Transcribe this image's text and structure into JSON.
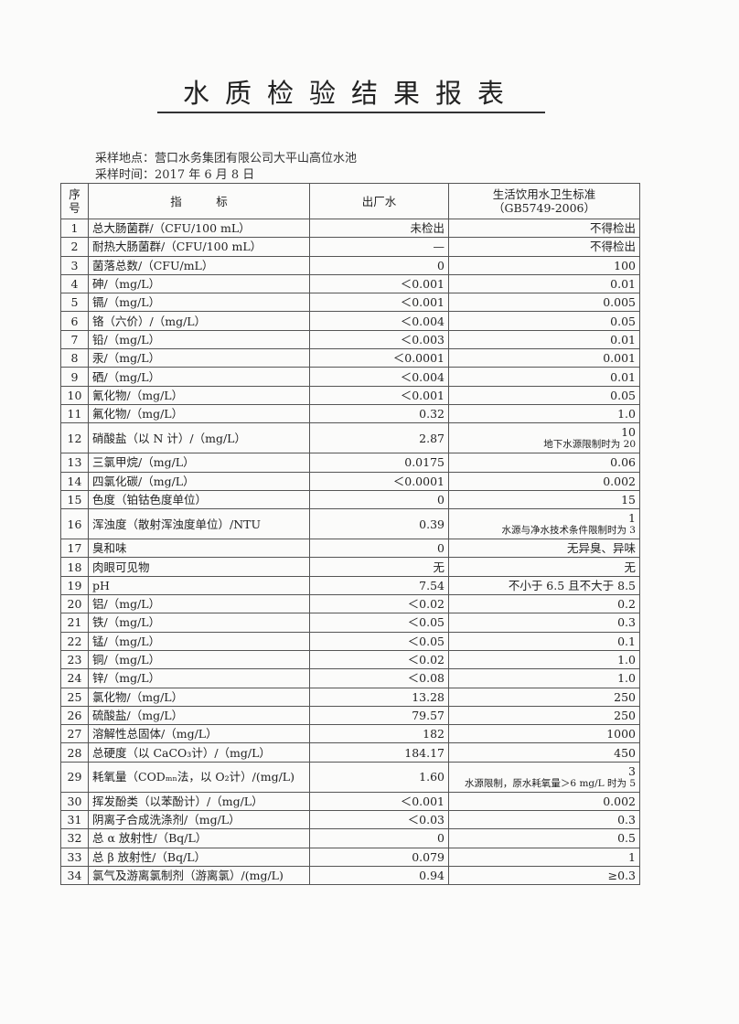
{
  "title": "水质检验结果报表",
  "sampling_location": "采样地点：营口水务集团有限公司大平山高位水池",
  "sampling_time": "采样时间：2017 年 6 月 8 日",
  "headers": {
    "seq": "序号",
    "indicator": "指　　　标",
    "outlet": "出厂水",
    "standard": "生活饮用水卫生标准",
    "standard_code": "（GB5749-2006）"
  },
  "rows": [
    {
      "no": "1",
      "name": "总大肠菌群/（CFU/100 mL）",
      "value": "未检出",
      "standard": "不得检出"
    },
    {
      "no": "2",
      "name": "耐热大肠菌群/（CFU/100 mL）",
      "value": "—",
      "standard": "不得检出"
    },
    {
      "no": "3",
      "name": "菌落总数/（CFU/mL）",
      "value": "0",
      "standard": "100"
    },
    {
      "no": "4",
      "name": "砷/（mg/L）",
      "value": "＜0.001",
      "standard": "0.01"
    },
    {
      "no": "5",
      "name": "镉/（mg/L）",
      "value": "＜0.001",
      "standard": "0.005"
    },
    {
      "no": "6",
      "name": "铬（六价）/（mg/L）",
      "value": "＜0.004",
      "standard": "0.05"
    },
    {
      "no": "7",
      "name": "铅/（mg/L）",
      "value": "＜0.003",
      "standard": "0.01"
    },
    {
      "no": "8",
      "name": "汞/（mg/L）",
      "value": "＜0.0001",
      "standard": "0.001"
    },
    {
      "no": "9",
      "name": "硒/（mg/L）",
      "value": "＜0.004",
      "standard": "0.01"
    },
    {
      "no": "10",
      "name": "氰化物/（mg/L）",
      "value": "＜0.001",
      "standard": "0.05"
    },
    {
      "no": "11",
      "name": "氟化物/（mg/L）",
      "value": "0.32",
      "standard": "1.0"
    },
    {
      "no": "12",
      "name": "硝酸盐（以 N 计）/（mg/L）",
      "value": "2.87",
      "standard": "10",
      "note": "地下水源限制时为 20"
    },
    {
      "no": "13",
      "name": "三氯甲烷/（mg/L）",
      "value": "0.0175",
      "standard": "0.06"
    },
    {
      "no": "14",
      "name": "四氯化碳/（mg/L）",
      "value": "＜0.0001",
      "standard": "0.002"
    },
    {
      "no": "15",
      "name": "色度（铂钴色度单位）",
      "value": "0",
      "standard": "15"
    },
    {
      "no": "16",
      "name": "浑浊度（散射浑浊度单位）/NTU",
      "value": "0.39",
      "standard": "1",
      "note": "水源与净水技术条件限制时为 3"
    },
    {
      "no": "17",
      "name": "臭和味",
      "value": "0",
      "standard": "无异臭、异味"
    },
    {
      "no": "18",
      "name": "肉眼可见物",
      "value": "无",
      "standard": "无"
    },
    {
      "no": "19",
      "name": "pH",
      "value": "7.54",
      "standard": "不小于 6.5 且不大于 8.5"
    },
    {
      "no": "20",
      "name": "铝/（mg/L）",
      "value": "＜0.02",
      "standard": "0.2"
    },
    {
      "no": "21",
      "name": "铁/（mg/L）",
      "value": "＜0.05",
      "standard": "0.3"
    },
    {
      "no": "22",
      "name": "锰/（mg/L）",
      "value": "＜0.05",
      "standard": "0.1"
    },
    {
      "no": "23",
      "name": "铜/（mg/L）",
      "value": "＜0.02",
      "standard": "1.0"
    },
    {
      "no": "24",
      "name": "锌/（mg/L）",
      "value": "＜0.08",
      "standard": "1.0"
    },
    {
      "no": "25",
      "name": "氯化物/（mg/L）",
      "value": "13.28",
      "standard": "250"
    },
    {
      "no": "26",
      "name": "硫酸盐/（mg/L）",
      "value": "79.57",
      "standard": "250"
    },
    {
      "no": "27",
      "name": "溶解性总固体/（mg/L）",
      "value": "182",
      "standard": "1000"
    },
    {
      "no": "28",
      "name": "总硬度（以 CaCO₃计）/（mg/L）",
      "value": "184.17",
      "standard": "450"
    },
    {
      "no": "29",
      "name": "耗氧量（CODₘₙ法，以 O₂计）/(mg/L)",
      "value": "1.60",
      "standard": "3",
      "note": "水源限制，原水耗氧量＞6 mg/L 时为 5"
    },
    {
      "no": "30",
      "name": "挥发酚类（以苯酚计）/（mg/L）",
      "value": "＜0.001",
      "standard": "0.002"
    },
    {
      "no": "31",
      "name": "阴离子合成洗涤剂/（mg/L）",
      "value": "＜0.03",
      "standard": "0.3"
    },
    {
      "no": "32",
      "name": "总 α 放射性/（Bq/L）",
      "value": "0",
      "standard": "0.5"
    },
    {
      "no": "33",
      "name": "总 β 放射性/（Bq/L）",
      "value": "0.079",
      "standard": "1"
    },
    {
      "no": "34",
      "name": "氯气及游离氯制剂（游离氯）/(mg/L)",
      "value": "0.94",
      "standard": "≥0.3"
    }
  ]
}
